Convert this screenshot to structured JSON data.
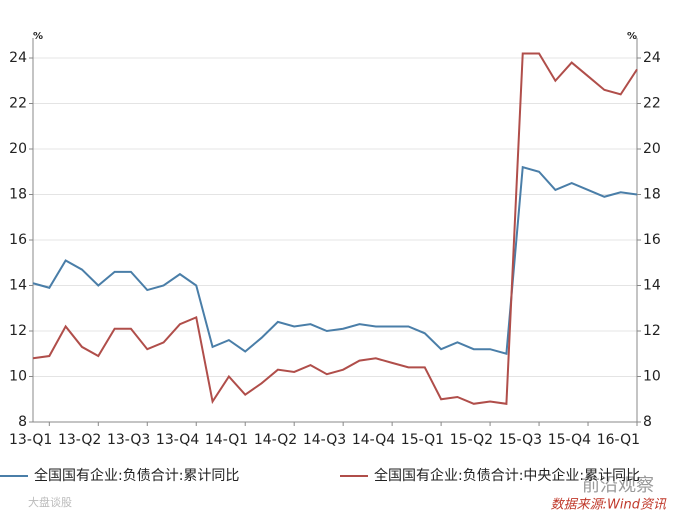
{
  "chart_data": {
    "type": "line",
    "y_unit": "%",
    "y2_unit": "%",
    "categories": [
      null,
      "13-Q1",
      null,
      null,
      "13-Q2",
      null,
      null,
      "13-Q3",
      null,
      null,
      "13-Q4",
      null,
      null,
      "14-Q1",
      null,
      null,
      "14-Q2",
      null,
      null,
      "14-Q3",
      null,
      null,
      "14-Q4",
      null,
      null,
      "15-Q1",
      null,
      null,
      "15-Q2",
      null,
      null,
      "15-Q3",
      null,
      null,
      "15-Q4",
      null,
      null,
      "16-Q1"
    ],
    "series": [
      {
        "name": "全国国有企业:负债合计:累计同比",
        "color": "#4a7ea8",
        "values": [
          14.1,
          13.9,
          15.1,
          14.7,
          14.0,
          14.6,
          14.6,
          13.8,
          14.0,
          14.5,
          14.0,
          11.3,
          11.6,
          11.1,
          11.7,
          12.4,
          12.2,
          12.3,
          12.0,
          12.1,
          12.3,
          12.2,
          12.2,
          12.2,
          11.9,
          11.2,
          11.5,
          11.2,
          11.2,
          11.0,
          19.2,
          19.0,
          18.2,
          18.5,
          18.2,
          17.9,
          18.1,
          18.0
        ]
      },
      {
        "name": "全国国有企业:负债合计:中央企业:累计同比",
        "color": "#b04e4a",
        "axis": "y2",
        "values": [
          10.8,
          10.9,
          12.2,
          11.3,
          10.9,
          12.1,
          12.1,
          11.2,
          11.5,
          12.3,
          12.6,
          8.9,
          10.0,
          9.2,
          9.7,
          10.3,
          10.2,
          10.5,
          10.1,
          10.3,
          10.7,
          10.8,
          10.6,
          10.4,
          10.4,
          9.0,
          9.1,
          8.8,
          8.9,
          8.8,
          24.2,
          24.2,
          23.0,
          23.8,
          23.2,
          22.6,
          22.4,
          23.5
        ]
      }
    ],
    "ylim": [
      8,
      24
    ],
    "yticks": [
      8,
      10,
      12,
      14,
      16,
      18,
      20,
      22,
      24
    ],
    "y2lim": [
      8,
      24
    ],
    "y2ticks": [
      8,
      10,
      12,
      14,
      16,
      18,
      20,
      22,
      24
    ],
    "grid": true,
    "watermarks": [
      "前沿观察",
      "数据来源:Wind资讯",
      "大盘谈股"
    ]
  }
}
